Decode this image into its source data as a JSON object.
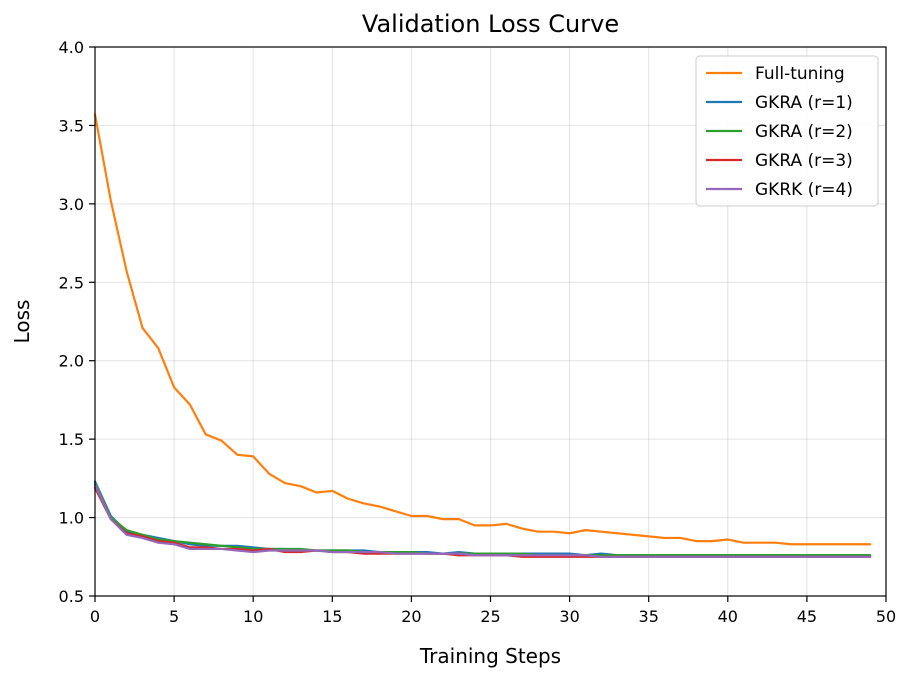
{
  "chart_data": {
    "type": "line",
    "title": "Validation Loss Curve",
    "xlabel": "Training Steps",
    "ylabel": "Loss",
    "xlim": [
      0,
      50
    ],
    "ylim": [
      0.5,
      4.0
    ],
    "xticks": [
      0,
      5,
      10,
      15,
      20,
      25,
      30,
      35,
      40,
      45,
      50
    ],
    "yticks": [
      0.5,
      1.0,
      1.5,
      2.0,
      2.5,
      3.0,
      3.5,
      4.0
    ],
    "xtick_labels": [
      "0",
      "5",
      "10",
      "15",
      "20",
      "25",
      "30",
      "35",
      "40",
      "45",
      "50"
    ],
    "ytick_labels": [
      "0.5",
      "1.0",
      "1.5",
      "2.0",
      "2.5",
      "3.0",
      "3.5",
      "4.0"
    ],
    "grid": true,
    "legend_position": "top-right",
    "x": [
      0,
      1,
      2,
      3,
      4,
      5,
      6,
      7,
      8,
      9,
      10,
      11,
      12,
      13,
      14,
      15,
      16,
      17,
      18,
      19,
      20,
      21,
      22,
      23,
      24,
      25,
      26,
      27,
      28,
      29,
      30,
      31,
      32,
      33,
      34,
      35,
      36,
      37,
      38,
      39,
      40,
      41,
      42,
      43,
      44,
      45,
      46,
      47,
      48,
      49
    ],
    "series": [
      {
        "name": "Full-tuning",
        "color": "#ff7f0e",
        "values": [
          3.57,
          3.02,
          2.57,
          2.21,
          2.08,
          1.83,
          1.72,
          1.53,
          1.49,
          1.4,
          1.39,
          1.28,
          1.22,
          1.2,
          1.16,
          1.17,
          1.12,
          1.09,
          1.07,
          1.04,
          1.01,
          1.01,
          0.99,
          0.99,
          0.95,
          0.95,
          0.96,
          0.93,
          0.91,
          0.91,
          0.9,
          0.92,
          0.91,
          0.9,
          0.89,
          0.88,
          0.87,
          0.87,
          0.85,
          0.85,
          0.86,
          0.84,
          0.84,
          0.84,
          0.83,
          0.83,
          0.83,
          0.83,
          0.83,
          0.83
        ]
      },
      {
        "name": "GKRA (r=1)",
        "color": "#1f77b4",
        "values": [
          1.23,
          1.01,
          0.91,
          0.89,
          0.87,
          0.85,
          0.83,
          0.82,
          0.82,
          0.82,
          0.81,
          0.8,
          0.8,
          0.79,
          0.79,
          0.79,
          0.79,
          0.79,
          0.78,
          0.78,
          0.78,
          0.78,
          0.77,
          0.78,
          0.77,
          0.77,
          0.77,
          0.77,
          0.77,
          0.77,
          0.77,
          0.76,
          0.77,
          0.76,
          0.76,
          0.76,
          0.76,
          0.76,
          0.76,
          0.76,
          0.76,
          0.76,
          0.76,
          0.76,
          0.76,
          0.76,
          0.76,
          0.76,
          0.76,
          0.76
        ]
      },
      {
        "name": "GKRA (r=2)",
        "color": "#2ca02c",
        "values": [
          1.22,
          1.0,
          0.92,
          0.89,
          0.86,
          0.85,
          0.84,
          0.83,
          0.82,
          0.81,
          0.8,
          0.8,
          0.8,
          0.8,
          0.79,
          0.79,
          0.79,
          0.78,
          0.78,
          0.78,
          0.78,
          0.77,
          0.77,
          0.77,
          0.77,
          0.77,
          0.77,
          0.77,
          0.76,
          0.76,
          0.76,
          0.76,
          0.76,
          0.76,
          0.76,
          0.76,
          0.76,
          0.76,
          0.76,
          0.76,
          0.76,
          0.76,
          0.76,
          0.76,
          0.76,
          0.76,
          0.76,
          0.76,
          0.76,
          0.76
        ]
      },
      {
        "name": "GKRA (r=3)",
        "color": "#d62728",
        "values": [
          1.19,
          0.99,
          0.9,
          0.88,
          0.85,
          0.84,
          0.81,
          0.81,
          0.8,
          0.8,
          0.79,
          0.8,
          0.78,
          0.78,
          0.79,
          0.78,
          0.78,
          0.77,
          0.77,
          0.77,
          0.77,
          0.77,
          0.77,
          0.76,
          0.76,
          0.76,
          0.76,
          0.75,
          0.75,
          0.75,
          0.75,
          0.75,
          0.75,
          0.75,
          0.75,
          0.75,
          0.75,
          0.75,
          0.75,
          0.75,
          0.75,
          0.75,
          0.75,
          0.75,
          0.75,
          0.75,
          0.75,
          0.75,
          0.75,
          0.75
        ]
      },
      {
        "name": "GKRK (r=4)",
        "color": "#9467bd",
        "values": [
          1.21,
          0.99,
          0.89,
          0.87,
          0.84,
          0.83,
          0.8,
          0.8,
          0.8,
          0.79,
          0.78,
          0.79,
          0.79,
          0.79,
          0.79,
          0.78,
          0.78,
          0.78,
          0.78,
          0.77,
          0.77,
          0.77,
          0.77,
          0.77,
          0.76,
          0.76,
          0.76,
          0.76,
          0.76,
          0.76,
          0.76,
          0.76,
          0.75,
          0.75,
          0.75,
          0.75,
          0.75,
          0.75,
          0.75,
          0.75,
          0.75,
          0.75,
          0.75,
          0.75,
          0.75,
          0.75,
          0.75,
          0.75,
          0.75,
          0.75
        ]
      }
    ]
  }
}
